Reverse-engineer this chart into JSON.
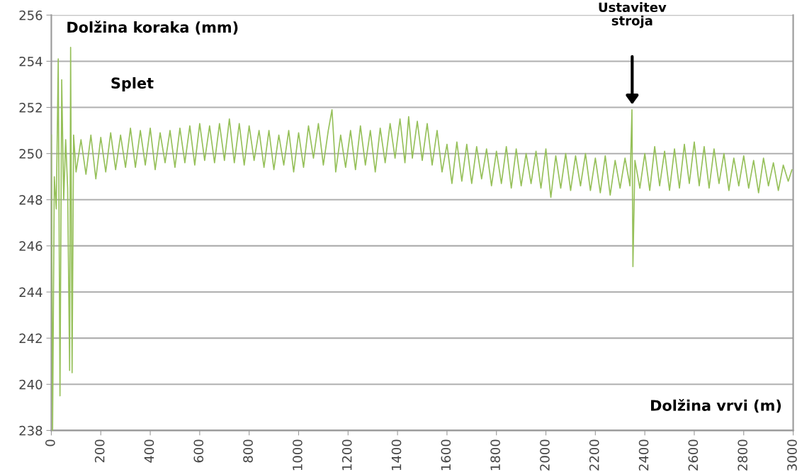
{
  "chart_data": {
    "type": "line",
    "ylabel": "Dolžina koraka (mm)",
    "xlabel": "Dolžina vrvi (m)",
    "annotations": [
      {
        "text": "Splet",
        "x": 80,
        "y": 253
      },
      "Ustavitev\nstroja"
    ],
    "xlim": [
      0,
      3000
    ],
    "xticks": [
      0,
      200,
      400,
      600,
      800,
      1000,
      1200,
      1400,
      1600,
      1800,
      2000,
      2200,
      2400,
      2600,
      2800,
      3000
    ],
    "ylim": [
      238,
      256
    ],
    "yticks": [
      238,
      240,
      242,
      244,
      246,
      248,
      250,
      252,
      254,
      256
    ],
    "grid": "y",
    "legend": false,
    "marker": "none",
    "line_style": "solid",
    "series": [
      {
        "color": "#96c05a",
        "x": [
          0,
          5,
          12,
          20,
          28,
          35,
          42,
          50,
          58,
          66,
          74,
          78,
          84,
          90,
          100,
          120,
          140,
          160,
          180,
          200,
          220,
          240,
          260,
          280,
          300,
          320,
          340,
          360,
          380,
          400,
          420,
          440,
          460,
          480,
          500,
          520,
          540,
          560,
          580,
          600,
          620,
          640,
          660,
          680,
          700,
          720,
          740,
          760,
          780,
          800,
          820,
          840,
          860,
          880,
          900,
          920,
          940,
          960,
          980,
          1000,
          1020,
          1040,
          1060,
          1080,
          1100,
          1120,
          1135,
          1150,
          1170,
          1190,
          1210,
          1230,
          1250,
          1270,
          1290,
          1310,
          1330,
          1350,
          1370,
          1390,
          1410,
          1430,
          1445,
          1460,
          1480,
          1500,
          1520,
          1540,
          1560,
          1580,
          1600,
          1620,
          1640,
          1660,
          1680,
          1700,
          1720,
          1740,
          1760,
          1780,
          1800,
          1820,
          1840,
          1860,
          1880,
          1900,
          1920,
          1940,
          1960,
          1980,
          2000,
          2020,
          2040,
          2060,
          2080,
          2100,
          2120,
          2140,
          2160,
          2180,
          2200,
          2220,
          2240,
          2260,
          2280,
          2300,
          2320,
          2340,
          2348,
          2352,
          2360,
          2380,
          2400,
          2420,
          2440,
          2460,
          2480,
          2500,
          2520,
          2540,
          2560,
          2580,
          2600,
          2620,
          2640,
          2660,
          2680,
          2700,
          2720,
          2740,
          2760,
          2780,
          2800,
          2820,
          2840,
          2860,
          2880,
          2900,
          2920,
          2940,
          2960,
          2980,
          2995
        ],
        "values": [
          250.8,
          238,
          249,
          247.6,
          254.1,
          239.5,
          253.2,
          248,
          250.6,
          248.5,
          240.6,
          254.6,
          240.5,
          250.8,
          249.2,
          250.6,
          249.1,
          250.8,
          248.9,
          250.7,
          249.2,
          250.9,
          249.3,
          250.8,
          249.4,
          251.1,
          249.4,
          251.0,
          249.5,
          251.1,
          249.3,
          250.9,
          249.6,
          251.0,
          249.4,
          251.1,
          249.6,
          251.2,
          249.5,
          251.3,
          249.7,
          251.2,
          249.6,
          251.3,
          249.7,
          251.5,
          249.6,
          251.3,
          249.5,
          251.2,
          249.7,
          251.0,
          249.4,
          251.0,
          249.3,
          250.8,
          249.5,
          251.0,
          249.2,
          250.9,
          249.4,
          251.2,
          249.8,
          251.3,
          249.5,
          251.0,
          251.9,
          249.2,
          250.8,
          249.4,
          251.0,
          249.3,
          251.2,
          249.5,
          251.0,
          249.2,
          251.1,
          249.6,
          251.3,
          249.8,
          251.5,
          249.6,
          251.6,
          249.8,
          251.4,
          249.7,
          251.3,
          249.5,
          251.0,
          249.2,
          250.4,
          248.7,
          250.5,
          248.8,
          250.4,
          248.7,
          250.3,
          248.9,
          250.2,
          248.6,
          250.1,
          248.7,
          250.3,
          248.5,
          250.2,
          248.6,
          250.0,
          248.7,
          250.1,
          248.5,
          250.2,
          248.1,
          249.9,
          248.5,
          250.0,
          248.4,
          249.9,
          248.6,
          250.0,
          248.4,
          249.8,
          248.3,
          249.9,
          248.2,
          249.7,
          248.5,
          249.8,
          248.6,
          251.9,
          245.1,
          249.7,
          248.5,
          250.0,
          248.4,
          250.3,
          248.6,
          250.1,
          248.4,
          250.2,
          248.5,
          250.4,
          248.7,
          250.5,
          248.6,
          250.3,
          248.5,
          250.2,
          248.7,
          250.0,
          248.4,
          249.8,
          248.6,
          249.9,
          248.5,
          249.7,
          248.3,
          249.8,
          248.6,
          249.6,
          248.4,
          249.5,
          248.8,
          249.3
        ]
      }
    ]
  }
}
